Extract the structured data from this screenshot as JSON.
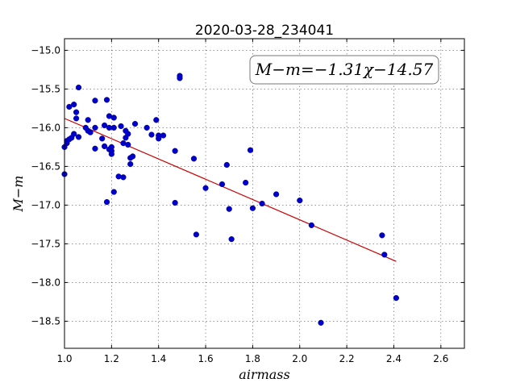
{
  "chart_data": {
    "type": "scatter",
    "title": "2020-03-28_234041",
    "xlabel": "airmass",
    "ylabel": "M−m",
    "xlim": [
      1.0,
      2.7
    ],
    "ylim": [
      -18.85,
      -14.85
    ],
    "ytick_values": [
      -15.0,
      -15.5,
      -16.0,
      -16.5,
      -17.0,
      -17.5,
      -18.0,
      -18.5
    ],
    "ytick_labels": [
      "−15.0",
      "−15.5",
      "−16.0",
      "−16.5",
      "−17.0",
      "−17.5",
      "−18.0",
      "−18.5"
    ],
    "xtick_values": [
      1.0,
      1.2,
      1.4,
      1.6,
      1.8,
      2.0,
      2.2,
      2.4,
      2.6
    ],
    "xtick_labels": [
      "1.0",
      "1.2",
      "1.4",
      "1.6",
      "1.8",
      "2.0",
      "2.2",
      "2.4",
      "2.6"
    ],
    "grid": true,
    "annotation": "M−m=−1.31χ−14.57",
    "annotation_position": "top-right",
    "fit": {
      "slope": -1.31,
      "intercept": -14.57,
      "x_range": [
        1.0,
        2.41
      ],
      "color": "#cc0000"
    },
    "point_color": "#0000cc",
    "points": [
      [
        1.0,
        -16.6
      ],
      [
        1.0,
        -16.25
      ],
      [
        1.01,
        -16.2
      ],
      [
        1.01,
        -16.17
      ],
      [
        1.02,
        -16.15
      ],
      [
        1.02,
        -15.73
      ],
      [
        1.03,
        -16.13
      ],
      [
        1.04,
        -15.7
      ],
      [
        1.04,
        -16.08
      ],
      [
        1.05,
        -15.8
      ],
      [
        1.05,
        -15.88
      ],
      [
        1.06,
        -15.48
      ],
      [
        1.06,
        -16.12
      ],
      [
        1.09,
        -16.0
      ],
      [
        1.1,
        -15.9
      ],
      [
        1.1,
        -16.04
      ],
      [
        1.11,
        -16.06
      ],
      [
        1.13,
        -16.27
      ],
      [
        1.13,
        -15.65
      ],
      [
        1.13,
        -16.0
      ],
      [
        1.16,
        -16.14
      ],
      [
        1.17,
        -15.97
      ],
      [
        1.17,
        -16.24
      ],
      [
        1.18,
        -15.64
      ],
      [
        1.18,
        -16.96
      ],
      [
        1.19,
        -15.85
      ],
      [
        1.19,
        -16.28
      ],
      [
        1.19,
        -16.0
      ],
      [
        1.2,
        -16.25
      ],
      [
        1.2,
        -16.3
      ],
      [
        1.2,
        -16.34
      ],
      [
        1.21,
        -16.0
      ],
      [
        1.21,
        -16.83
      ],
      [
        1.21,
        -15.87
      ],
      [
        1.23,
        -16.63
      ],
      [
        1.24,
        -15.98
      ],
      [
        1.25,
        -16.2
      ],
      [
        1.25,
        -16.64
      ],
      [
        1.26,
        -16.04
      ],
      [
        1.26,
        -16.13
      ],
      [
        1.27,
        -16.22
      ],
      [
        1.27,
        -16.08
      ],
      [
        1.28,
        -16.47
      ],
      [
        1.28,
        -16.39
      ],
      [
        1.29,
        -16.37
      ],
      [
        1.3,
        -15.95
      ],
      [
        1.35,
        -16.0
      ],
      [
        1.37,
        -16.09
      ],
      [
        1.39,
        -15.9
      ],
      [
        1.4,
        -16.1
      ],
      [
        1.4,
        -16.14
      ],
      [
        1.42,
        -16.1
      ],
      [
        1.47,
        -16.3
      ],
      [
        1.47,
        -16.97
      ],
      [
        1.49,
        -15.33
      ],
      [
        1.49,
        -15.36
      ],
      [
        1.55,
        -16.4
      ],
      [
        1.56,
        -17.38
      ],
      [
        1.6,
        -16.78
      ],
      [
        1.67,
        -16.73
      ],
      [
        1.69,
        -16.48
      ],
      [
        1.7,
        -17.05
      ],
      [
        1.71,
        -17.44
      ],
      [
        1.77,
        -16.71
      ],
      [
        1.79,
        -16.29
      ],
      [
        1.8,
        -17.04
      ],
      [
        1.84,
        -16.98
      ],
      [
        1.9,
        -16.86
      ],
      [
        2.0,
        -16.94
      ],
      [
        2.05,
        -17.26
      ],
      [
        2.09,
        -18.52
      ],
      [
        2.35,
        -17.39
      ],
      [
        2.36,
        -17.64
      ],
      [
        2.41,
        -18.2
      ]
    ]
  }
}
